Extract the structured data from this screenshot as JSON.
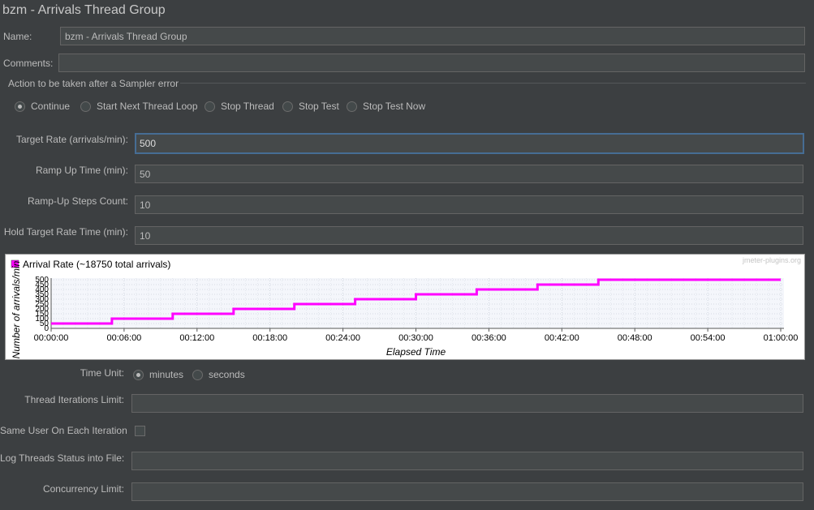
{
  "header": {
    "title": "bzm - Arrivals Thread Group"
  },
  "name_field": {
    "label": "Name:",
    "value": "bzm - Arrivals Thread Group"
  },
  "comments_field": {
    "label": "Comments:",
    "value": ""
  },
  "sampler_error": {
    "legend": "Action to be taken after a Sampler error",
    "options": [
      "Continue",
      "Start Next Thread Loop",
      "Stop Thread",
      "Stop Test",
      "Stop Test Now"
    ],
    "selected": "Continue"
  },
  "params": {
    "target_rate": {
      "label": "Target Rate (arrivals/min):",
      "value": "500"
    },
    "ramp_up_time": {
      "label": "Ramp Up Time (min):",
      "value": "50"
    },
    "ramp_up_steps": {
      "label": "Ramp-Up Steps Count:",
      "value": "10"
    },
    "hold_time": {
      "label": "Hold Target Rate Time (min):",
      "value": "10"
    }
  },
  "chart_data": {
    "type": "line",
    "legend": "Arrival Rate (~18750 total arrivals)",
    "watermark": "jmeter-plugins.org",
    "xlabel": "Elapsed Time",
    "ylabel": "Number of arrivals/min",
    "x_ticks": [
      "00:00:00",
      "00:06:00",
      "00:12:00",
      "00:18:00",
      "00:24:00",
      "00:30:00",
      "00:36:00",
      "00:42:00",
      "00:48:00",
      "00:54:00",
      "01:00:00"
    ],
    "y_ticks": [
      "0",
      "50",
      "100",
      "150",
      "200",
      "250",
      "300",
      "350",
      "400",
      "450",
      "500"
    ],
    "xlim_min": [
      0,
      60
    ],
    "ylim": [
      0,
      500
    ],
    "grid": true,
    "series_color": "#ff00ff",
    "series": [
      {
        "name": "Arrival Rate (~18750 total arrivals)",
        "x": [
          0,
          5,
          5,
          10,
          10,
          15,
          15,
          20,
          20,
          25,
          25,
          30,
          30,
          35,
          35,
          40,
          40,
          45,
          45,
          60
        ],
        "y": [
          50,
          50,
          100,
          100,
          150,
          150,
          200,
          200,
          250,
          250,
          300,
          300,
          350,
          350,
          400,
          400,
          450,
          450,
          500,
          500
        ]
      }
    ]
  },
  "time_unit": {
    "label": "Time Unit:",
    "options": [
      "minutes",
      "seconds"
    ],
    "selected": "minutes"
  },
  "thread_iterations": {
    "label": "Thread Iterations Limit:",
    "value": ""
  },
  "same_user": {
    "label": "Same User On Each Iteration",
    "checked": false
  },
  "log_threads": {
    "label": "Log Threads Status into File:",
    "value": ""
  },
  "concurrency": {
    "label": "Concurrency Limit:",
    "value": ""
  }
}
